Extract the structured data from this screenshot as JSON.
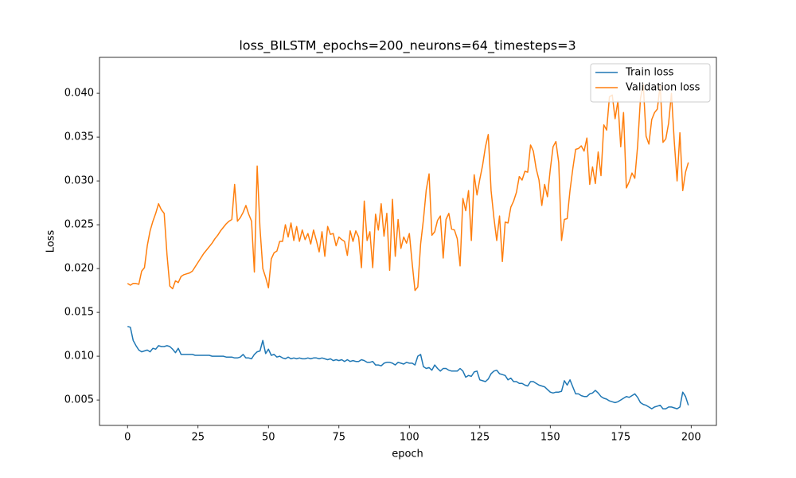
{
  "chart_data": {
    "type": "line",
    "title": "loss_BILSTM_epochs=200_neurons=64_timesteps=3",
    "xlabel": "epoch",
    "ylabel": "Loss",
    "x": [
      0,
      1,
      2,
      3,
      4,
      5,
      6,
      7,
      8,
      9,
      10,
      11,
      12,
      13,
      14,
      15,
      16,
      17,
      18,
      19,
      20,
      21,
      22,
      23,
      24,
      25,
      26,
      27,
      28,
      29,
      30,
      31,
      32,
      33,
      34,
      35,
      36,
      37,
      38,
      39,
      40,
      41,
      42,
      43,
      44,
      45,
      46,
      47,
      48,
      49,
      50,
      51,
      52,
      53,
      54,
      55,
      56,
      57,
      58,
      59,
      60,
      61,
      62,
      63,
      64,
      65,
      66,
      67,
      68,
      69,
      70,
      71,
      72,
      73,
      74,
      75,
      76,
      77,
      78,
      79,
      80,
      81,
      82,
      83,
      84,
      85,
      86,
      87,
      88,
      89,
      90,
      91,
      92,
      93,
      94,
      95,
      96,
      97,
      98,
      99,
      100,
      101,
      102,
      103,
      104,
      105,
      106,
      107,
      108,
      109,
      110,
      111,
      112,
      113,
      114,
      115,
      116,
      117,
      118,
      119,
      120,
      121,
      122,
      123,
      124,
      125,
      126,
      127,
      128,
      129,
      130,
      131,
      132,
      133,
      134,
      135,
      136,
      137,
      138,
      139,
      140,
      141,
      142,
      143,
      144,
      145,
      146,
      147,
      148,
      149,
      150,
      151,
      152,
      153,
      154,
      155,
      156,
      157,
      158,
      159,
      160,
      161,
      162,
      163,
      164,
      165,
      166,
      167,
      168,
      169,
      170,
      171,
      172,
      173,
      174,
      175,
      176,
      177,
      178,
      179,
      180,
      181,
      182,
      183,
      184,
      185,
      186,
      187,
      188,
      189,
      190,
      191,
      192,
      193,
      194,
      195,
      196,
      197,
      198,
      199
    ],
    "series": [
      {
        "name": "Train loss",
        "color": "#1f77b4",
        "values": [
          0.0134,
          0.0133,
          0.0118,
          0.0112,
          0.0107,
          0.0105,
          0.0106,
          0.0107,
          0.0105,
          0.0109,
          0.0108,
          0.0112,
          0.0111,
          0.0111,
          0.0112,
          0.0111,
          0.0108,
          0.0104,
          0.0109,
          0.0102,
          0.0102,
          0.0102,
          0.0102,
          0.0102,
          0.0101,
          0.0101,
          0.0101,
          0.0101,
          0.0101,
          0.0101,
          0.01,
          0.01,
          0.01,
          0.01,
          0.01,
          0.0099,
          0.0099,
          0.0099,
          0.0098,
          0.0098,
          0.0099,
          0.0102,
          0.0098,
          0.0098,
          0.0097,
          0.0102,
          0.0105,
          0.0106,
          0.0118,
          0.0103,
          0.0108,
          0.0101,
          0.0102,
          0.0099,
          0.01,
          0.0098,
          0.0097,
          0.0099,
          0.0097,
          0.0098,
          0.0097,
          0.0098,
          0.0097,
          0.0097,
          0.0098,
          0.0097,
          0.0098,
          0.0098,
          0.0097,
          0.0098,
          0.0097,
          0.0096,
          0.0097,
          0.0095,
          0.0096,
          0.0095,
          0.0096,
          0.0094,
          0.0096,
          0.0094,
          0.0095,
          0.0094,
          0.0094,
          0.0096,
          0.0095,
          0.0093,
          0.0093,
          0.0094,
          0.009,
          0.009,
          0.0089,
          0.0092,
          0.0093,
          0.0093,
          0.0092,
          0.009,
          0.0093,
          0.0092,
          0.0091,
          0.0093,
          0.0092,
          0.0092,
          0.009,
          0.01,
          0.0102,
          0.0088,
          0.0086,
          0.0087,
          0.0084,
          0.009,
          0.0086,
          0.0083,
          0.0086,
          0.0086,
          0.0084,
          0.0083,
          0.0083,
          0.0083,
          0.0086,
          0.0083,
          0.0076,
          0.0078,
          0.0077,
          0.0082,
          0.0083,
          0.0073,
          0.0072,
          0.0071,
          0.0074,
          0.008,
          0.0083,
          0.0084,
          0.008,
          0.0079,
          0.0078,
          0.0073,
          0.0075,
          0.0071,
          0.0071,
          0.0069,
          0.0069,
          0.0067,
          0.0066,
          0.0071,
          0.0071,
          0.0069,
          0.0067,
          0.0066,
          0.0065,
          0.0062,
          0.0059,
          0.0058,
          0.0059,
          0.0059,
          0.006,
          0.0072,
          0.0067,
          0.0073,
          0.0065,
          0.0057,
          0.0057,
          0.0055,
          0.0054,
          0.0054,
          0.0057,
          0.0058,
          0.0061,
          0.0058,
          0.0054,
          0.0052,
          0.0051,
          0.0049,
          0.0048,
          0.0047,
          0.0048,
          0.005,
          0.0052,
          0.0054,
          0.0053,
          0.0055,
          0.0057,
          0.0053,
          0.0047,
          0.0045,
          0.0044,
          0.0042,
          0.004,
          0.0042,
          0.0043,
          0.0044,
          0.004,
          0.004,
          0.0042,
          0.0042,
          0.0041,
          0.004,
          0.0042,
          0.0059,
          0.0054,
          0.0044
        ]
      },
      {
        "name": "Validation loss",
        "color": "#ff7f0e",
        "values": [
          0.0183,
          0.0181,
          0.0183,
          0.0183,
          0.0182,
          0.0197,
          0.0201,
          0.0226,
          0.0243,
          0.0254,
          0.0263,
          0.0274,
          0.0267,
          0.0263,
          0.0216,
          0.018,
          0.0177,
          0.0186,
          0.0184,
          0.0191,
          0.0193,
          0.0194,
          0.0195,
          0.0197,
          0.0202,
          0.0207,
          0.0212,
          0.0217,
          0.0221,
          0.0225,
          0.0229,
          0.0234,
          0.0238,
          0.0243,
          0.0247,
          0.0251,
          0.0254,
          0.0256,
          0.0296,
          0.0254,
          0.0258,
          0.0264,
          0.0272,
          0.0262,
          0.0254,
          0.0196,
          0.0317,
          0.0246,
          0.02,
          0.019,
          0.0178,
          0.0211,
          0.0218,
          0.022,
          0.0231,
          0.0231,
          0.025,
          0.0236,
          0.0252,
          0.0232,
          0.0248,
          0.0231,
          0.0244,
          0.0233,
          0.024,
          0.0228,
          0.0244,
          0.0232,
          0.0219,
          0.0242,
          0.0214,
          0.0248,
          0.0239,
          0.024,
          0.0226,
          0.0236,
          0.0233,
          0.0231,
          0.0215,
          0.0243,
          0.0231,
          0.0243,
          0.0236,
          0.0201,
          0.0277,
          0.0232,
          0.0242,
          0.0201,
          0.0262,
          0.0244,
          0.0274,
          0.0237,
          0.0263,
          0.0198,
          0.0279,
          0.0214,
          0.0256,
          0.0223,
          0.0236,
          0.0229,
          0.024,
          0.0206,
          0.0175,
          0.0179,
          0.0228,
          0.0256,
          0.029,
          0.0308,
          0.0238,
          0.0242,
          0.0255,
          0.026,
          0.0212,
          0.0256,
          0.0263,
          0.0245,
          0.0244,
          0.0234,
          0.0203,
          0.028,
          0.0266,
          0.0289,
          0.0232,
          0.0307,
          0.0284,
          0.0302,
          0.0318,
          0.0339,
          0.0353,
          0.0289,
          0.0258,
          0.0232,
          0.026,
          0.0208,
          0.0253,
          0.0252,
          0.027,
          0.0277,
          0.0287,
          0.0305,
          0.0301,
          0.0311,
          0.031,
          0.0341,
          0.0334,
          0.0314,
          0.0301,
          0.0272,
          0.0296,
          0.0282,
          0.0313,
          0.0339,
          0.0345,
          0.0321,
          0.0232,
          0.0256,
          0.0257,
          0.0289,
          0.0314,
          0.0336,
          0.0337,
          0.034,
          0.0334,
          0.0349,
          0.0296,
          0.0316,
          0.0297,
          0.0333,
          0.0306,
          0.0364,
          0.0358,
          0.0396,
          0.0398,
          0.0371,
          0.0391,
          0.0339,
          0.0378,
          0.0292,
          0.0299,
          0.0309,
          0.0303,
          0.034,
          0.0394,
          0.041,
          0.0351,
          0.0342,
          0.037,
          0.0378,
          0.0382,
          0.041,
          0.0344,
          0.0348,
          0.0366,
          0.04,
          0.0345,
          0.03,
          0.0355,
          0.0289,
          0.031,
          0.0321
        ]
      }
    ],
    "xlim": [
      -9.95,
      208.95
    ],
    "xticks": [
      0,
      25,
      50,
      75,
      100,
      125,
      150,
      175,
      200
    ],
    "ylim": [
      0.0021,
      0.0441
    ],
    "yticks": [
      0.005,
      {
        "value": 0.01,
        "label": "0.010"
      },
      0.015,
      {
        "value": 0.02,
        "label": "0.020"
      },
      0.025,
      {
        "value": 0.03,
        "label": "0.030"
      },
      0.035,
      {
        "value": 0.04,
        "label": "0.040"
      }
    ],
    "grid": false,
    "legend": "upper right"
  }
}
